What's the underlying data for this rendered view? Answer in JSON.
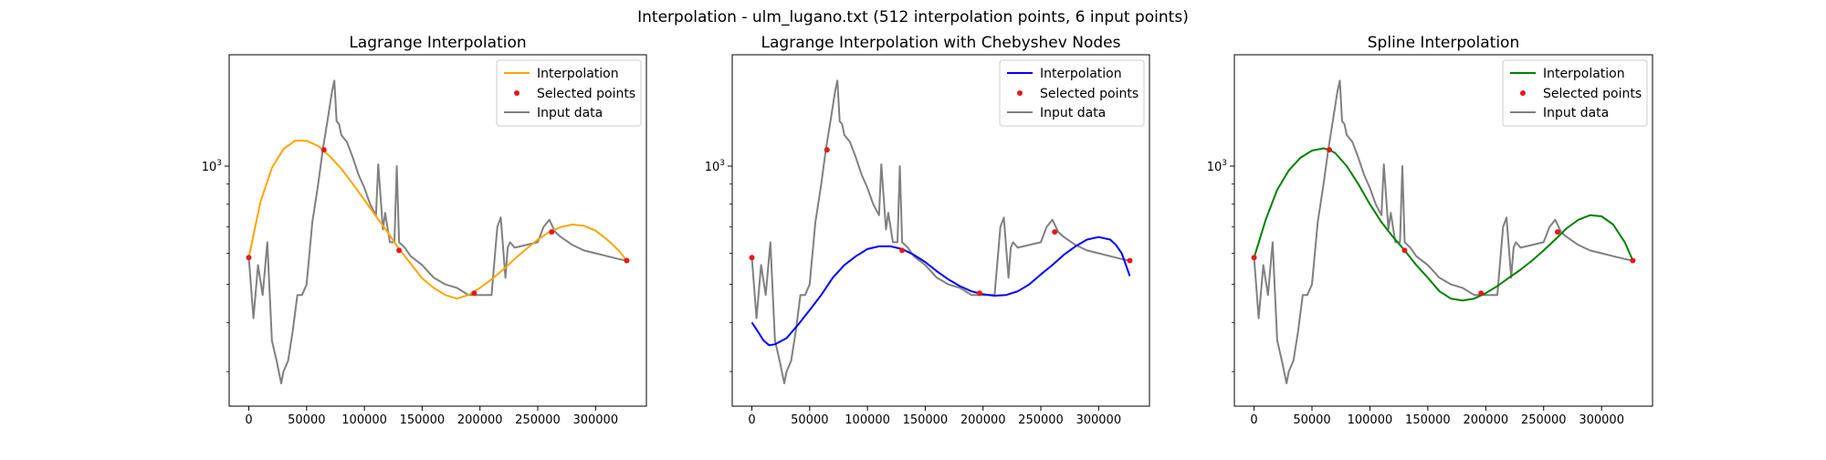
{
  "figure_title": "Interpolation - ulm_lugano.txt (512 interpolation points, 6 input points)",
  "x_tick_labels": [
    "0",
    "50000",
    "100000",
    "150000",
    "200000",
    "250000",
    "300000"
  ],
  "y_tick_base": "10",
  "y_tick_exponent": "3",
  "legend_labels": {
    "interp": "Interpolation",
    "points": "Selected points",
    "input": "Input data"
  },
  "colors": {
    "input": "#808080",
    "points": "#e41a1c"
  },
  "chart_data": [
    {
      "type": "line",
      "title": "Lagrange Interpolation",
      "xlabel": "",
      "ylabel": "",
      "xlim": [
        -17000,
        344000
      ],
      "ylim": [
        245,
        1920
      ],
      "yscale": "log",
      "interp_color": "#ffa500",
      "legend": "top-right",
      "grid": false,
      "series": [
        {
          "name": "Interpolation",
          "x": [
            0,
            10000,
            20000,
            30000,
            40000,
            50000,
            60000,
            70000,
            80000,
            90000,
            100000,
            110000,
            120000,
            130000,
            140000,
            150000,
            160000,
            170000,
            180000,
            190000,
            200000,
            210000,
            220000,
            230000,
            240000,
            250000,
            260000,
            270000,
            280000,
            290000,
            300000,
            310000,
            320000,
            327000
          ],
          "y": [
            585,
            810,
            990,
            1105,
            1160,
            1160,
            1125,
            1060,
            985,
            900,
            820,
            745,
            680,
            615,
            565,
            518,
            490,
            470,
            460,
            470,
            490,
            515,
            545,
            580,
            615,
            650,
            680,
            700,
            710,
            705,
            685,
            650,
            610,
            575
          ]
        },
        {
          "name": "Selected points",
          "x": [
            0,
            65000,
            130000,
            195000,
            262000,
            327000
          ],
          "y": [
            585,
            1100,
            610,
            475,
            680,
            575
          ]
        },
        {
          "name": "Input data",
          "x": [
            0,
            4000,
            8000,
            12000,
            16000,
            20000,
            24000,
            28000,
            30000,
            34000,
            38000,
            42000,
            46000,
            50000,
            55000,
            60000,
            64000,
            68000,
            72000,
            74000,
            76000,
            78000,
            80000,
            85000,
            90000,
            95000,
            100000,
            105000,
            110000,
            112000,
            116000,
            118000,
            122000,
            126000,
            128000,
            130000,
            135000,
            140000,
            150000,
            160000,
            170000,
            180000,
            190000,
            200000,
            210000,
            215000,
            218000,
            222000,
            224000,
            226000,
            230000,
            240000,
            250000,
            255000,
            260000,
            265000,
            270000,
            280000,
            290000,
            300000,
            310000,
            320000,
            327000
          ],
          "y": [
            585,
            410,
            560,
            470,
            640,
            360,
            320,
            280,
            300,
            320,
            380,
            470,
            470,
            500,
            720,
            900,
            1100,
            1300,
            1550,
            1650,
            1300,
            1280,
            1200,
            1150,
            1050,
            950,
            880,
            800,
            750,
            1010,
            690,
            760,
            640,
            640,
            1000,
            640,
            620,
            590,
            560,
            520,
            500,
            490,
            470,
            470,
            470,
            700,
            740,
            520,
            620,
            640,
            620,
            630,
            640,
            700,
            730,
            680,
            660,
            630,
            610,
            600,
            590,
            580,
            575
          ]
        }
      ]
    },
    {
      "type": "line",
      "title": "Lagrange Interpolation with Chebyshev Nodes",
      "xlabel": "",
      "ylabel": "",
      "xlim": [
        -17000,
        344000
      ],
      "ylim": [
        245,
        1920
      ],
      "yscale": "log",
      "interp_color": "#0000ff",
      "legend": "top-right",
      "grid": false,
      "series": [
        {
          "name": "Interpolation",
          "x": [
            0,
            5000,
            10000,
            15000,
            20000,
            30000,
            40000,
            50000,
            60000,
            70000,
            80000,
            90000,
            100000,
            110000,
            120000,
            130000,
            140000,
            150000,
            160000,
            170000,
            180000,
            190000,
            200000,
            210000,
            220000,
            230000,
            240000,
            250000,
            260000,
            270000,
            280000,
            290000,
            300000,
            310000,
            315000,
            320000,
            327000
          ],
          "y": [
            400,
            380,
            360,
            350,
            352,
            365,
            395,
            430,
            470,
            520,
            560,
            590,
            615,
            625,
            625,
            615,
            595,
            570,
            540,
            515,
            495,
            480,
            472,
            468,
            470,
            480,
            500,
            530,
            560,
            595,
            625,
            650,
            660,
            650,
            630,
            600,
            525
          ]
        },
        {
          "name": "Selected points",
          "x": [
            0,
            65000,
            130000,
            197000,
            262000,
            327000
          ],
          "y": [
            585,
            1100,
            610,
            475,
            680,
            575
          ]
        },
        {
          "name": "Input data",
          "x": [
            0,
            4000,
            8000,
            12000,
            16000,
            20000,
            24000,
            28000,
            30000,
            34000,
            38000,
            42000,
            46000,
            50000,
            55000,
            60000,
            64000,
            68000,
            72000,
            74000,
            76000,
            78000,
            80000,
            85000,
            90000,
            95000,
            100000,
            105000,
            110000,
            112000,
            116000,
            118000,
            122000,
            126000,
            128000,
            130000,
            135000,
            140000,
            150000,
            160000,
            170000,
            180000,
            190000,
            200000,
            210000,
            215000,
            218000,
            222000,
            224000,
            226000,
            230000,
            240000,
            250000,
            255000,
            260000,
            265000,
            270000,
            280000,
            290000,
            300000,
            310000,
            320000,
            327000
          ],
          "y": [
            585,
            410,
            560,
            470,
            640,
            360,
            320,
            280,
            300,
            320,
            380,
            470,
            470,
            500,
            720,
            900,
            1100,
            1300,
            1550,
            1650,
            1300,
            1280,
            1200,
            1150,
            1050,
            950,
            880,
            800,
            750,
            1010,
            690,
            760,
            640,
            640,
            1000,
            640,
            620,
            590,
            560,
            520,
            500,
            490,
            470,
            470,
            470,
            700,
            740,
            520,
            620,
            640,
            620,
            630,
            640,
            700,
            730,
            680,
            660,
            630,
            610,
            600,
            590,
            580,
            575
          ]
        }
      ]
    },
    {
      "type": "line",
      "title": "Spline Interpolation",
      "xlabel": "",
      "ylabel": "",
      "xlim": [
        -17000,
        344000
      ],
      "ylim": [
        245,
        1920
      ],
      "yscale": "log",
      "interp_color": "#008000",
      "legend": "top-right",
      "grid": false,
      "series": [
        {
          "name": "Interpolation",
          "x": [
            0,
            10000,
            20000,
            30000,
            40000,
            50000,
            60000,
            65000,
            70000,
            80000,
            90000,
            100000,
            110000,
            120000,
            130000,
            140000,
            150000,
            160000,
            170000,
            180000,
            190000,
            200000,
            210000,
            220000,
            230000,
            240000,
            250000,
            260000,
            270000,
            280000,
            290000,
            300000,
            310000,
            320000,
            327000
          ],
          "y": [
            585,
            730,
            870,
            975,
            1050,
            1095,
            1110,
            1100,
            1080,
            1000,
            900,
            800,
            720,
            660,
            610,
            560,
            520,
            480,
            460,
            455,
            460,
            475,
            495,
            520,
            545,
            575,
            610,
            650,
            695,
            730,
            750,
            745,
            710,
            640,
            575
          ]
        },
        {
          "name": "Selected points",
          "x": [
            0,
            65000,
            130000,
            196000,
            262000,
            327000
          ],
          "y": [
            585,
            1100,
            610,
            475,
            680,
            575
          ]
        },
        {
          "name": "Input data",
          "x": [
            0,
            4000,
            8000,
            12000,
            16000,
            20000,
            24000,
            28000,
            30000,
            34000,
            38000,
            42000,
            46000,
            50000,
            55000,
            60000,
            64000,
            68000,
            72000,
            74000,
            76000,
            78000,
            80000,
            85000,
            90000,
            95000,
            100000,
            105000,
            110000,
            112000,
            116000,
            118000,
            122000,
            126000,
            128000,
            130000,
            135000,
            140000,
            150000,
            160000,
            170000,
            180000,
            190000,
            200000,
            210000,
            215000,
            218000,
            222000,
            224000,
            226000,
            230000,
            240000,
            250000,
            255000,
            260000,
            265000,
            270000,
            280000,
            290000,
            300000,
            310000,
            320000,
            327000
          ],
          "y": [
            585,
            410,
            560,
            470,
            640,
            360,
            320,
            280,
            300,
            320,
            380,
            470,
            470,
            500,
            720,
            900,
            1100,
            1300,
            1550,
            1650,
            1300,
            1280,
            1200,
            1150,
            1050,
            950,
            880,
            800,
            750,
            1010,
            690,
            760,
            640,
            640,
            1000,
            640,
            620,
            590,
            560,
            520,
            500,
            490,
            470,
            470,
            470,
            700,
            740,
            520,
            620,
            640,
            620,
            630,
            640,
            700,
            730,
            680,
            660,
            630,
            610,
            600,
            590,
            580,
            575
          ]
        }
      ]
    }
  ]
}
